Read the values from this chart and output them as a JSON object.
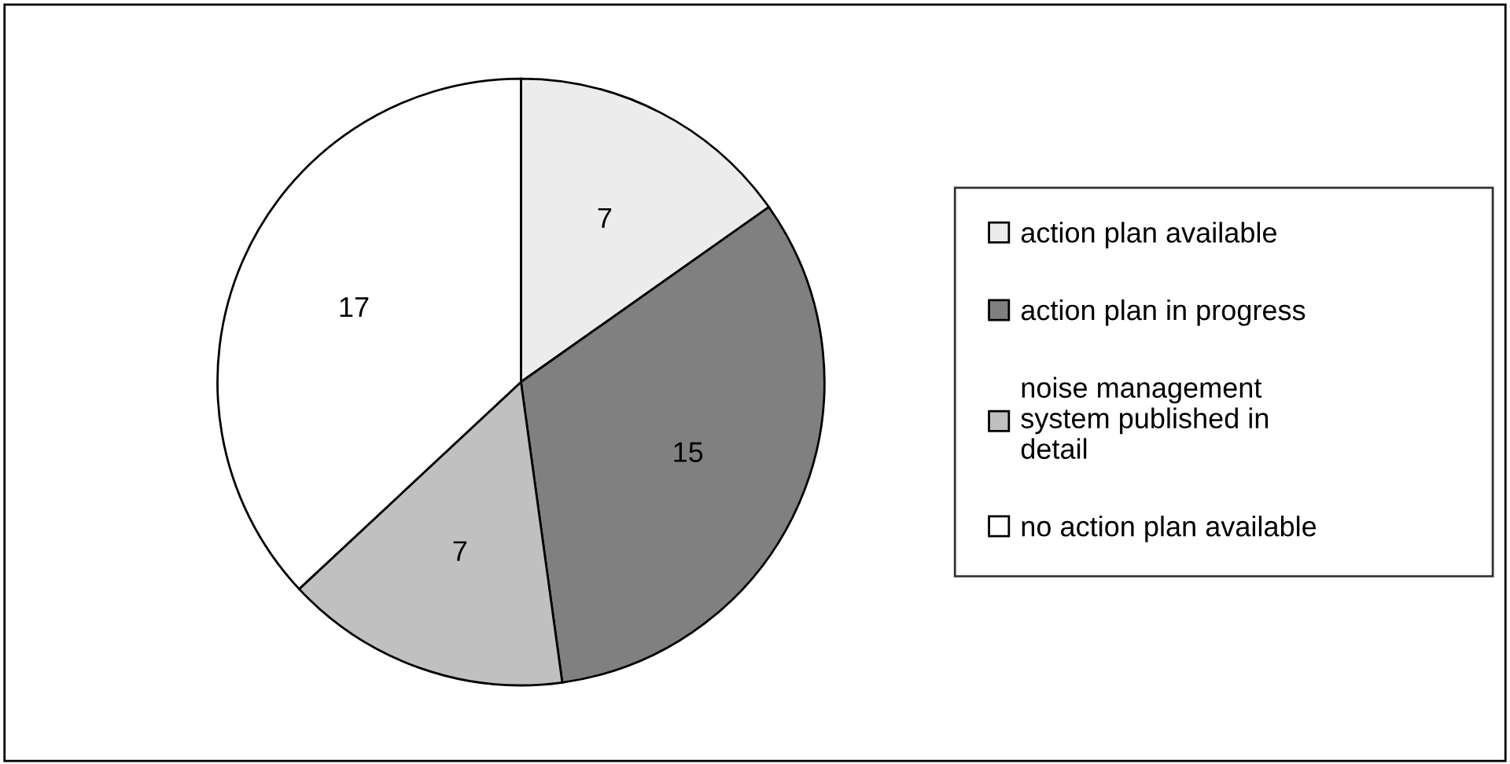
{
  "chart_data": {
    "type": "pie",
    "categories": [
      "action plan available",
      "action plan in progress",
      "noise management\nsystem published in\ndetail",
      "no action plan available"
    ],
    "values": [
      7,
      15,
      7,
      17
    ],
    "colors": [
      "#ececec",
      "#808080",
      "#c0c0c0",
      "#ffffff"
    ],
    "data_labels": true,
    "legend": "right"
  }
}
